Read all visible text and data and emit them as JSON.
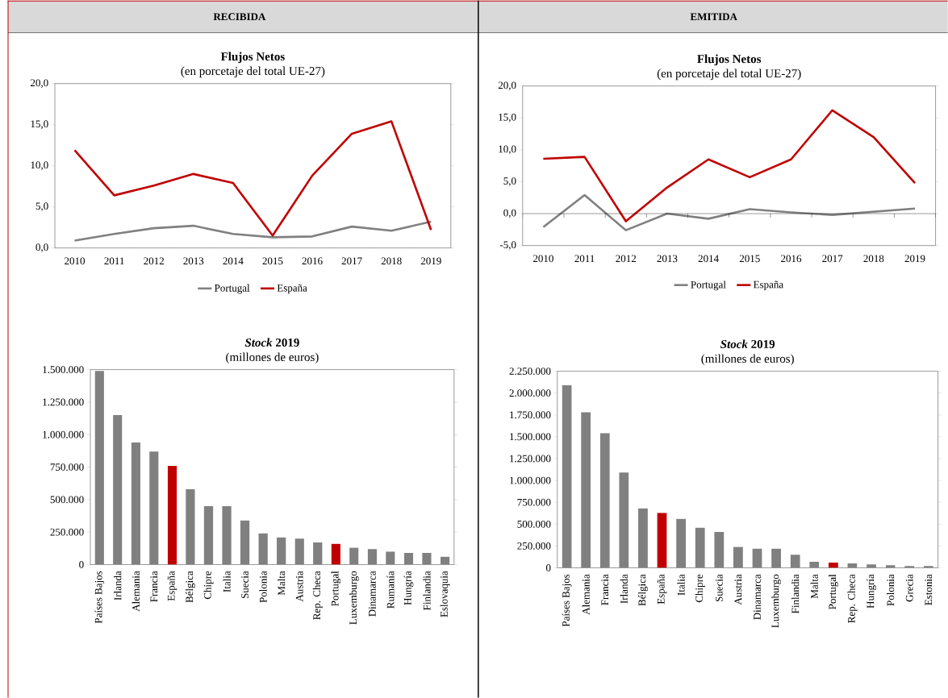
{
  "chart_data": [
    {
      "type": "line",
      "title": "Flujos Netos",
      "subtitle": "(en porcetaje del total UE-27)",
      "annotations": [
        "RECIBIDA"
      ],
      "categories": [
        "2010",
        "2011",
        "2012",
        "2013",
        "2014",
        "2015",
        "2016",
        "2017",
        "2018",
        "2019"
      ],
      "series": [
        {
          "name": "Portugal",
          "color": "#808080",
          "values": [
            0.9,
            1.7,
            2.4,
            2.7,
            1.7,
            1.3,
            1.4,
            2.6,
            2.1,
            3.2
          ]
        },
        {
          "name": "España",
          "color": "#c00000",
          "values": [
            11.9,
            6.4,
            7.6,
            9.0,
            7.9,
            1.5,
            8.8,
            13.9,
            15.4,
            2.2
          ]
        }
      ],
      "ylim": [
        0,
        20
      ],
      "yticks": [
        {
          "value": 0,
          "label": "0,0"
        },
        {
          "value": 5,
          "label": "5,0"
        },
        {
          "value": 10,
          "label": "10,0"
        },
        {
          "value": 15,
          "label": "15,0"
        },
        {
          "value": 20,
          "label": "20,0"
        }
      ],
      "legend": "bottom"
    },
    {
      "type": "line",
      "title": "Flujos Netos",
      "subtitle": "(en porcetaje del total UE-27)",
      "annotations": [
        "EMITIDA"
      ],
      "categories": [
        "2010",
        "2011",
        "2012",
        "2013",
        "2014",
        "2015",
        "2016",
        "2017",
        "2018",
        "2019"
      ],
      "series": [
        {
          "name": "Portugal",
          "color": "#808080",
          "values": [
            -2.1,
            2.9,
            -2.6,
            0.0,
            -0.8,
            0.7,
            0.2,
            -0.2,
            0.3,
            0.8
          ]
        },
        {
          "name": "España",
          "color": "#c00000",
          "values": [
            8.6,
            8.9,
            -1.2,
            4.1,
            8.5,
            5.7,
            8.5,
            16.2,
            12.0,
            4.8
          ]
        }
      ],
      "ylim": [
        -5,
        20
      ],
      "yticks": [
        {
          "value": -5,
          "label": "-5,0"
        },
        {
          "value": 0,
          "label": "0,0"
        },
        {
          "value": 5,
          "label": "5,0"
        },
        {
          "value": 10,
          "label": "10,0"
        },
        {
          "value": 15,
          "label": "15,0"
        },
        {
          "value": 20,
          "label": "20,0"
        }
      ],
      "legend": "bottom"
    },
    {
      "type": "bar",
      "title": "*Stock* 2019",
      "subtitle": "(millones de euros)",
      "categories": [
        "Países Bajos",
        "Irlanda",
        "Alemania",
        "Francia",
        "España",
        "Bélgica",
        "Chipre",
        "Italia",
        "Suecia",
        "Polonia",
        "Malta",
        "Austria",
        "Rep. Checa",
        "Portugal",
        "Luxemburgo",
        "Dinamarca",
        "Rumanía",
        "Hungría",
        "Finlandia",
        "Eslovaquia"
      ],
      "values": [
        1490000,
        1150000,
        940000,
        870000,
        760000,
        580000,
        450000,
        450000,
        340000,
        240000,
        210000,
        200000,
        170000,
        160000,
        130000,
        120000,
        100000,
        90000,
        90000,
        60000
      ],
      "colors": [
        "#808080",
        "#808080",
        "#808080",
        "#808080",
        "#c00000",
        "#808080",
        "#808080",
        "#808080",
        "#808080",
        "#808080",
        "#808080",
        "#808080",
        "#808080",
        "#c00000",
        "#808080",
        "#808080",
        "#808080",
        "#808080",
        "#808080",
        "#808080"
      ],
      "ylim": [
        0,
        1500000
      ],
      "yticks": [
        0,
        {
          "value": 250000,
          "label": "250.000"
        },
        {
          "value": 500000,
          "label": "500.000"
        },
        {
          "value": 750000,
          "label": "750.000"
        },
        {
          "value": 1000000,
          "label": "1.000.000"
        },
        {
          "value": 1250000,
          "label": "1.250.000"
        },
        {
          "value": 1500000,
          "label": "1.500.000"
        }
      ]
    },
    {
      "type": "bar",
      "title": "*Stock* 2019",
      "subtitle": "(millones de euros)",
      "categories": [
        "Países Bajos",
        "Alemania",
        "Francia",
        "Irlanda",
        "Bélgica",
        "España",
        "Italia",
        "Chipre",
        "Suecia",
        "Austria",
        "Dinamarca",
        "Luxemburgo",
        "Finlandia",
        "Malta",
        "Portugal",
        "Rep. Checa",
        "Hungría",
        "Polonia",
        "Grecia",
        "Estonia"
      ],
      "values": [
        2090000,
        1780000,
        1540000,
        1090000,
        680000,
        630000,
        560000,
        460000,
        410000,
        240000,
        220000,
        220000,
        150000,
        70000,
        60000,
        50000,
        40000,
        30000,
        20000,
        20000
      ],
      "colors": [
        "#808080",
        "#808080",
        "#808080",
        "#808080",
        "#808080",
        "#c00000",
        "#808080",
        "#808080",
        "#808080",
        "#808080",
        "#808080",
        "#808080",
        "#808080",
        "#808080",
        "#c00000",
        "#808080",
        "#808080",
        "#808080",
        "#808080",
        "#808080"
      ],
      "ylim": [
        0,
        2250000
      ],
      "yticks": [
        0,
        {
          "value": 250000,
          "label": "250.000"
        },
        {
          "value": 500000,
          "label": "500.000"
        },
        {
          "value": 750000,
          "label": "750.000"
        },
        {
          "value": 1000000,
          "label": "1.000.000"
        },
        {
          "value": 1250000,
          "label": "1.250.000"
        },
        {
          "value": 1500000,
          "label": "1.500.000"
        },
        {
          "value": 1750000,
          "label": "1.750.000"
        },
        {
          "value": 2000000,
          "label": "2.000.000"
        },
        {
          "value": 2250000,
          "label": "2.250.000"
        }
      ]
    }
  ]
}
